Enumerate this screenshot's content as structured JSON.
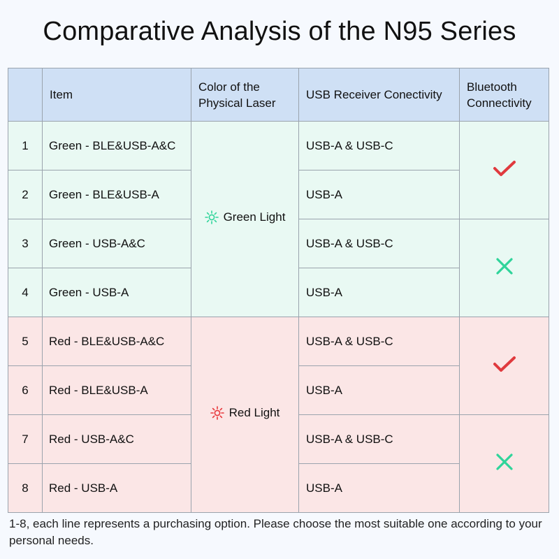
{
  "title": "Comparative Analysis of the N95 Series",
  "headers": {
    "num": "",
    "item": "Item",
    "color_line1": "Color of the",
    "color_line2": "Physical Laser",
    "usb": "USB Receiver Conectivity",
    "bt_line1": "Bluetooth",
    "bt_line2": "Connectivity"
  },
  "rows": [
    {
      "num": "1",
      "item": "Green - BLE&USB-A&C",
      "usb": "USB-A & USB-C"
    },
    {
      "num": "2",
      "item": "Green - BLE&USB-A",
      "usb": "USB-A"
    },
    {
      "num": "3",
      "item": "Green - USB-A&C",
      "usb": "USB-A & USB-C"
    },
    {
      "num": "4",
      "item": "Green - USB-A",
      "usb": "USB-A"
    },
    {
      "num": "5",
      "item": "Red - BLE&USB-A&C",
      "usb": "USB-A & USB-C"
    },
    {
      "num": "6",
      "item": "Red - BLE&USB-A",
      "usb": "USB-A"
    },
    {
      "num": "7",
      "item": "Red - USB-A&C",
      "usb": "USB-A & USB-C"
    },
    {
      "num": "8",
      "item": "Red - USB-A",
      "usb": "USB-A"
    }
  ],
  "laser_groups": [
    {
      "label": "Green Light",
      "icon": "green-light-icon",
      "color": "#2fd49a"
    },
    {
      "label": "Red Light",
      "icon": "red-light-icon",
      "color": "#e8363a"
    }
  ],
  "bluetooth": [
    {
      "value": "yes",
      "icon": "checkmark-icon",
      "color": "#e03a3e"
    },
    {
      "value": "no",
      "icon": "cross-icon",
      "color": "#2fd49a"
    },
    {
      "value": "yes",
      "icon": "checkmark-icon",
      "color": "#e03a3e"
    },
    {
      "value": "no",
      "icon": "cross-icon",
      "color": "#2fd49a"
    }
  ],
  "colors": {
    "header_bg": "#cfe0f5",
    "green_row_bg": "#e9f9f3",
    "red_row_bg": "#fbe6e6"
  },
  "note": "1-8, each line represents a purchasing option. Please choose the most suitable one according to your personal needs."
}
